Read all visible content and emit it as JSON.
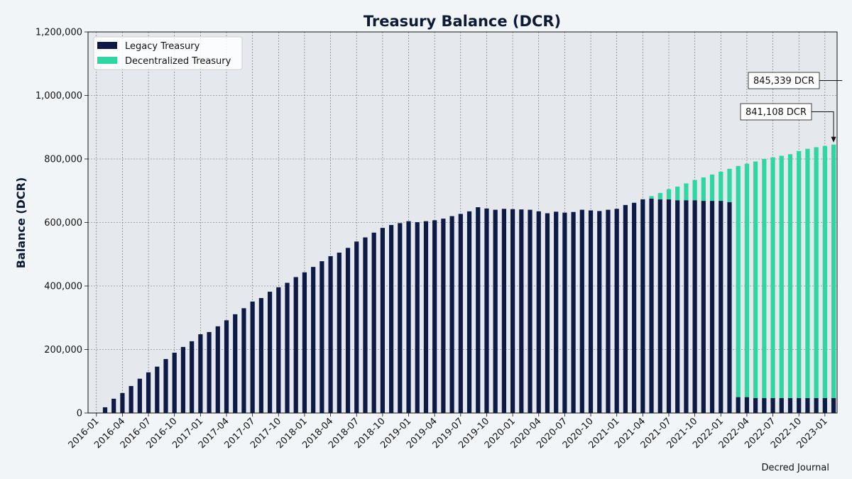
{
  "chart_data": {
    "type": "bar",
    "stacked": true,
    "title": "Treasury Balance (DCR)",
    "xlabel": "",
    "ylabel": "Balance (DCR)",
    "ylim": [
      0,
      1200000
    ],
    "yticks": [
      0,
      200000,
      400000,
      600000,
      800000,
      1000000,
      1200000
    ],
    "ytick_labels": [
      "0",
      "200,000",
      "400,000",
      "600,000",
      "800,000",
      "1,000,000",
      "1,200,000"
    ],
    "xtick_labels": [
      "2016-01",
      "2016-04",
      "2016-07",
      "2016-10",
      "2017-01",
      "2017-04",
      "2017-07",
      "2017-10",
      "2018-01",
      "2018-04",
      "2018-07",
      "2018-10",
      "2019-01",
      "2019-04",
      "2019-07",
      "2019-10",
      "2020-01",
      "2020-04",
      "2020-07",
      "2020-10",
      "2021-01",
      "2021-04",
      "2021-07",
      "2021-10",
      "2022-01",
      "2022-04",
      "2022-07",
      "2022-10",
      "2023-01"
    ],
    "grid": true,
    "legend_position": "top-left",
    "start_month": "2016-02",
    "series": [
      {
        "name": "Legacy Treasury",
        "color": "#0c1a45",
        "values": [
          18000,
          45000,
          63000,
          85000,
          108000,
          128000,
          146000,
          170000,
          190000,
          208000,
          226000,
          248000,
          255000,
          273000,
          292000,
          311000,
          330000,
          351000,
          362000,
          382000,
          396000,
          410000,
          428000,
          443000,
          460000,
          478000,
          494000,
          505000,
          520000,
          540000,
          553000,
          568000,
          583000,
          592000,
          598000,
          604000,
          601000,
          604000,
          607000,
          612000,
          620000,
          627000,
          635000,
          648000,
          644000,
          640000,
          643000,
          642000,
          641000,
          640000,
          635000,
          629000,
          634000,
          631000,
          633000,
          640000,
          638000,
          636000,
          640000,
          643000,
          655000,
          662000,
          673000,
          675000,
          673000,
          673000,
          670000,
          670000,
          670000,
          668000,
          668000,
          668000,
          664000,
          50000,
          50000,
          47000,
          47000,
          47000,
          47000,
          47000,
          47000,
          47000,
          47000,
          47000,
          47000
        ]
      },
      {
        "name": "Decentralized Treasury",
        "color": "#2ed6a1",
        "values": [
          0,
          0,
          0,
          0,
          0,
          0,
          0,
          0,
          0,
          0,
          0,
          0,
          0,
          0,
          0,
          0,
          0,
          0,
          0,
          0,
          0,
          0,
          0,
          0,
          0,
          0,
          0,
          0,
          0,
          0,
          0,
          0,
          0,
          0,
          0,
          0,
          0,
          0,
          0,
          0,
          0,
          0,
          0,
          0,
          0,
          0,
          0,
          0,
          0,
          0,
          0,
          0,
          0,
          0,
          0,
          0,
          0,
          0,
          0,
          0,
          0,
          0,
          0,
          8000,
          20000,
          32000,
          43000,
          53000,
          64000,
          74000,
          83000,
          92000,
          105000,
          728000,
          735000,
          745000,
          753000,
          758000,
          763000,
          768000,
          778000,
          785000,
          790000,
          794108,
          798339
        ]
      }
    ],
    "annotations": [
      {
        "text": "845,339 DCR",
        "points_to": "2023-03"
      },
      {
        "text": "841,108 DCR",
        "points_to": "2023-02"
      }
    ]
  },
  "credit": "Decred Journal"
}
